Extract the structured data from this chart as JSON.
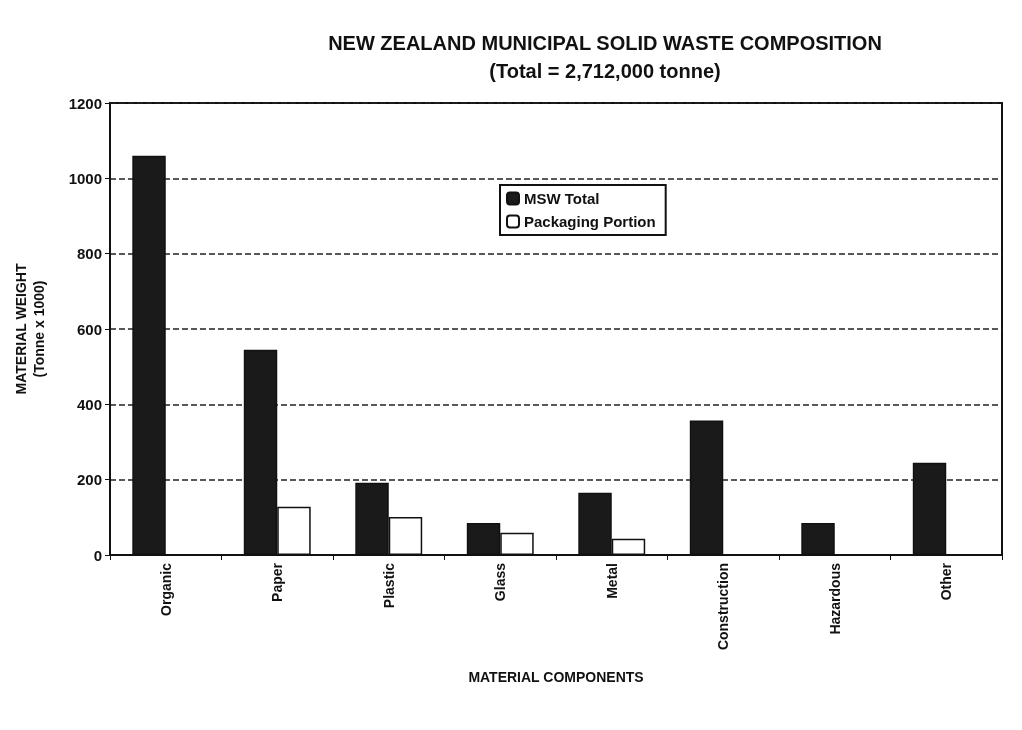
{
  "chart_data": {
    "type": "bar",
    "title": "NEW ZEALAND MUNICIPAL SOLID WASTE COMPOSITION",
    "subtitle": "(Total = 2,712,000 tonne)",
    "xlabel": "MATERIAL COMPONENTS",
    "ylabel": "MATERIAL WEIGHT\n(Tonne x 1000)",
    "categories": [
      "Organic",
      "Paper",
      "Plastic",
      "Glass",
      "Metal",
      "Construction",
      "Hazardous",
      "Other"
    ],
    "series": [
      {
        "name": "MSW Total",
        "color": "#1a1a1a",
        "values": [
          1060,
          545,
          192,
          85,
          165,
          357,
          85,
          245
        ]
      },
      {
        "name": "Packaging Portion",
        "color": "#ffffff",
        "values": [
          null,
          128,
          101,
          59,
          43,
          null,
          null,
          null
        ]
      }
    ],
    "ylim": [
      0,
      1200
    ],
    "yticks": [
      0,
      200,
      400,
      600,
      800,
      1000,
      1200
    ],
    "grid": "y",
    "legend": "top"
  }
}
